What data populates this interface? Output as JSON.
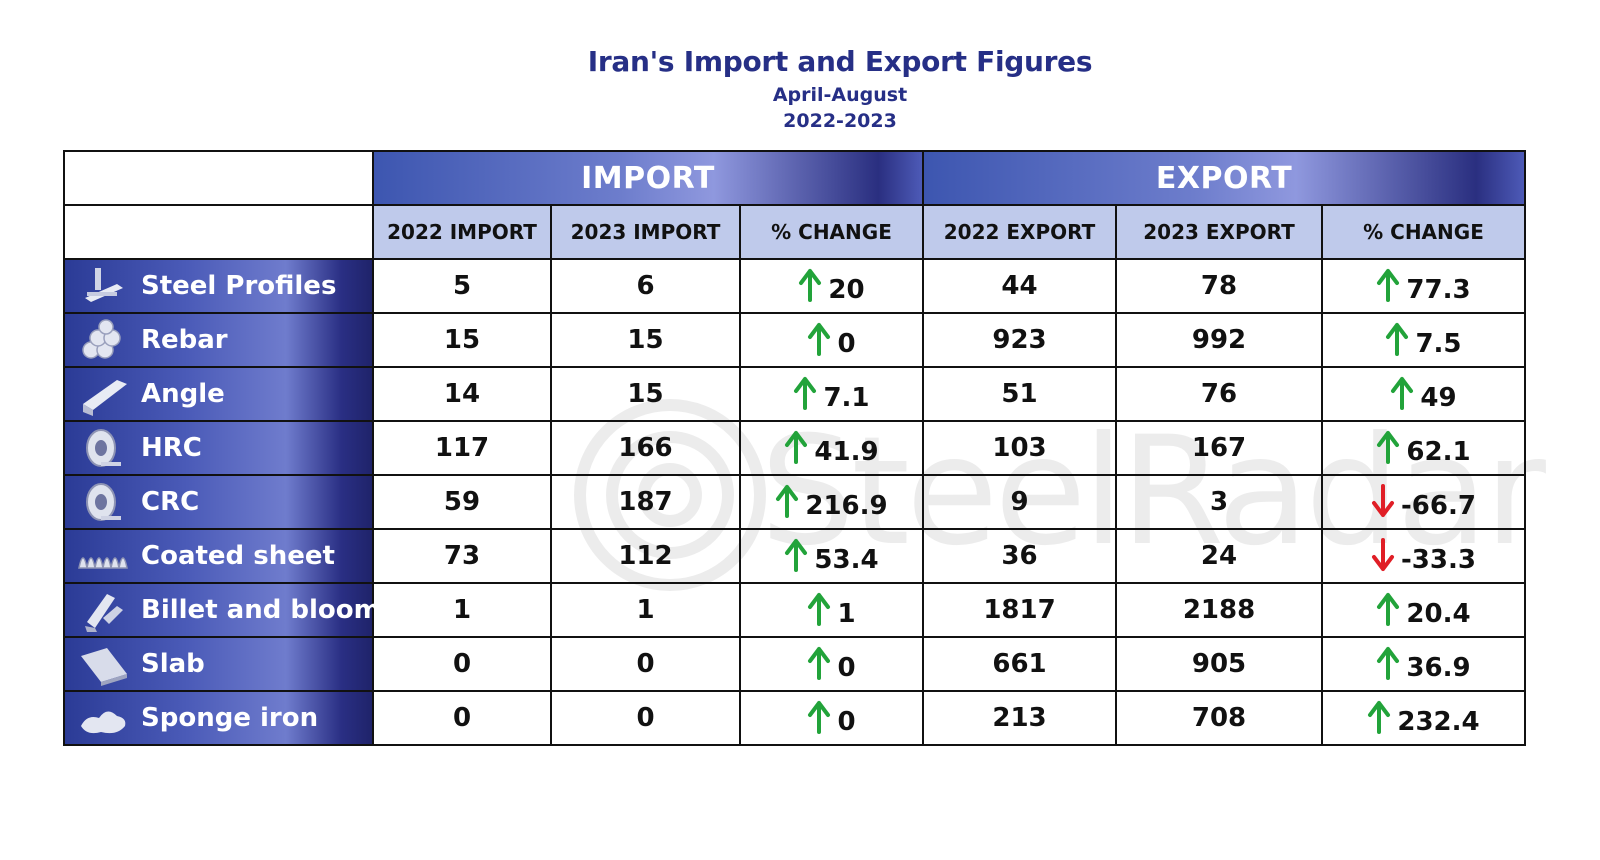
{
  "title": "Iran's Import and Export Figures",
  "subtitle": "April-August",
  "years": "2022-2023",
  "watermark": "SteelRadar",
  "groups": {
    "import": "IMPORT",
    "export": "EXPORT"
  },
  "columns": [
    "2022 IMPORT",
    "2023 IMPORT",
    "% CHANGE",
    "2022 EXPORT",
    "2023 EXPORT",
    "% CHANGE"
  ],
  "colors": {
    "up": "#22a33a",
    "down": "#e01e26",
    "title": "#262f86",
    "header": "#bfcaeb"
  },
  "chart_data": {
    "type": "table",
    "title": "Iran's Import and Export Figures",
    "subtitle": "April-August",
    "period": "2022-2023",
    "columns": [
      "2022 IMPORT",
      "2023 IMPORT",
      "% CHANGE",
      "2022 EXPORT",
      "2023 EXPORT",
      "% CHANGE"
    ],
    "rows": [
      {
        "product": "Steel Profiles",
        "icon": "steel-profile-icon",
        "import_2022": "5",
        "import_2023": "6",
        "import_change": "20",
        "import_dir": "up",
        "export_2022": "44",
        "export_2023": "78",
        "export_change": "77.3",
        "export_dir": "up"
      },
      {
        "product": "Rebar",
        "icon": "rebar-icon",
        "import_2022": "15",
        "import_2023": "15",
        "import_change": "0",
        "import_dir": "up",
        "export_2022": "923",
        "export_2023": "992",
        "export_change": "7.5",
        "export_dir": "up"
      },
      {
        "product": "Angle",
        "icon": "angle-icon",
        "import_2022": "14",
        "import_2023": "15",
        "import_change": "7.1",
        "import_dir": "up",
        "export_2022": "51",
        "export_2023": "76",
        "export_change": "49",
        "export_dir": "up"
      },
      {
        "product": "HRC",
        "icon": "coil-icon",
        "import_2022": "117",
        "import_2023": "166",
        "import_change": "41.9",
        "import_dir": "up",
        "export_2022": "103",
        "export_2023": "167",
        "export_change": "62.1",
        "export_dir": "up"
      },
      {
        "product": "CRC",
        "icon": "coil-icon",
        "import_2022": "59",
        "import_2023": "187",
        "import_change": "216.9",
        "import_dir": "up",
        "export_2022": "9",
        "export_2023": "3",
        "export_change": "-66.7",
        "export_dir": "down"
      },
      {
        "product": "Coated sheet",
        "icon": "corrugated-sheet-icon",
        "import_2022": "73",
        "import_2023": "112",
        "import_change": "53.4",
        "import_dir": "up",
        "export_2022": "36",
        "export_2023": "24",
        "export_change": "-33.3",
        "export_dir": "down"
      },
      {
        "product": "Billet and bloom",
        "icon": "billet-icon",
        "import_2022": "1",
        "import_2023": "1",
        "import_change": "1",
        "import_dir": "up",
        "export_2022": "1817",
        "export_2023": "2188",
        "export_change": "20.4",
        "export_dir": "up"
      },
      {
        "product": "Slab",
        "icon": "slab-icon",
        "import_2022": "0",
        "import_2023": "0",
        "import_change": "0",
        "import_dir": "up",
        "export_2022": "661",
        "export_2023": "905",
        "export_change": "36.9",
        "export_dir": "up"
      },
      {
        "product": "Sponge iron",
        "icon": "sponge-iron-icon",
        "import_2022": "0",
        "import_2023": "0",
        "import_change": "0",
        "import_dir": "up",
        "export_2022": "213",
        "export_2023": "708",
        "export_change": "232.4",
        "export_dir": "up"
      }
    ]
  }
}
